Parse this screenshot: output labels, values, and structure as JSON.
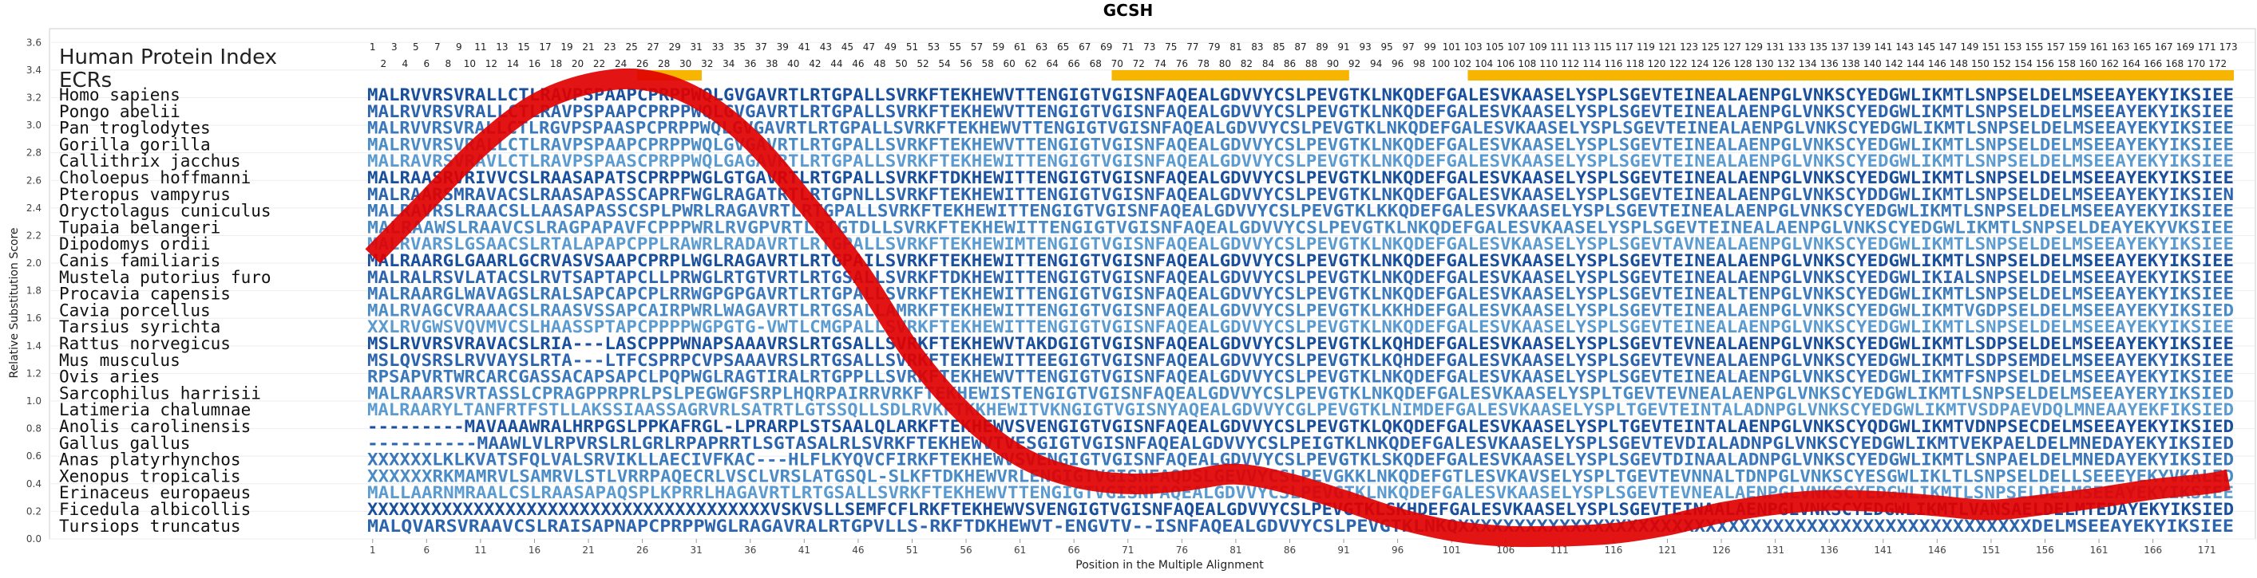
{
  "chart_data": {
    "type": "line",
    "title": "GCSH",
    "xlabel": "Position in the Multiple Alignment",
    "ylabel": "Relative Substitution Score",
    "ylim": [
      0.0,
      3.7
    ],
    "xlim": [
      1,
      173
    ],
    "y_ticks": [
      "0.0",
      "0.2",
      "0.4",
      "0.6",
      "0.8",
      "1.0",
      "1.2",
      "1.4",
      "1.6",
      "1.8",
      "2.0",
      "2.2",
      "2.4",
      "2.6",
      "2.8",
      "3.0",
      "3.2",
      "3.4",
      "3.6"
    ],
    "x_ticks": [
      "1",
      "6",
      "11",
      "16",
      "21",
      "26",
      "31",
      "36",
      "41",
      "46",
      "51",
      "56",
      "61",
      "66",
      "71",
      "76",
      "81",
      "86",
      "91",
      "96",
      "101",
      "106",
      "111",
      "116",
      "121",
      "126",
      "131",
      "136",
      "141",
      "146",
      "151",
      "156",
      "161",
      "166",
      "171"
    ],
    "header_title": "Human Protein Index",
    "ecr_label": "ECRs",
    "ecr_regions": [
      [
        26,
        31
      ],
      [
        70,
        91
      ],
      [
        103,
        173
      ]
    ],
    "ecr_color": "#f7b500",
    "curve_color": "#e00000",
    "series": [
      {
        "x": [
          1,
          6,
          11,
          16,
          21,
          26,
          31,
          36,
          41,
          46,
          51,
          56,
          61,
          66,
          71,
          76,
          81,
          86,
          91,
          96,
          101,
          106,
          111,
          116,
          121,
          126,
          131,
          136,
          141,
          146,
          151,
          156,
          161,
          166,
          171,
          173
        ],
        "y": [
          2.05,
          2.45,
          2.85,
          3.15,
          3.3,
          3.33,
          3.2,
          2.9,
          2.45,
          1.95,
          1.35,
          0.9,
          0.6,
          0.45,
          0.4,
          0.42,
          0.47,
          0.4,
          0.28,
          0.15,
          0.06,
          0.02,
          0.02,
          0.04,
          0.1,
          0.19,
          0.25,
          0.28,
          0.27,
          0.24,
          0.21,
          0.25,
          0.3,
          0.36,
          0.4,
          0.43
        ]
      }
    ],
    "species": [
      "Homo sapiens",
      "Pongo abelii",
      "Pan troglodytes",
      "Gorilla gorilla",
      "Callithrix jacchus",
      "Choloepus hoffmanni",
      "Pteropus vampyrus",
      "Oryctolagus cuniculus",
      "Tupaia belangeri",
      "Dipodomys ordii",
      "Canis familiaris",
      "Mustela putorius furo",
      "Procavia capensis",
      "Cavia porcellus",
      "Tarsius syrichta",
      "Rattus norvegicus",
      "Mus musculus",
      "Ovis aries",
      "Sarcophilus harrisii",
      "Latimeria chalumnae",
      "Anolis carolinensis",
      "Gallus gallus",
      "Anas platyrhynchos",
      "Xenopus tropicalis",
      "Erinaceus europaeus",
      "Ficedula albicollis",
      "Tursiops truncatus"
    ],
    "sequences": [
      "MALRVVRSVRALLCTLRAVPSPAAPCPRPPWQLGVGAVRTLRTGPALLSVRKFTEKHEWVTTENGIGTVGISNFAQEALGDVVYCSLPEVGTKLNKQDEFGALESVKAASELYSPLSGEVTEINEALAENPGLVNKSCYEDGWLIKMTLSNPSELDELMSEEAYEKYIKSIEE",
      "MALRVVRSVRALLCTLRAVPSPAAPCPRPPWQLGVGAVRTLRTGPALLSVRKFTEKHEWVTTENGIGTVGISNFAQEALGDVVYCSLPEVGTKLNKQDEFGALESVKAASELYSPLSGEVTEINEALAENPGLVNKSCYEDGWLIKMTLSNPSELDELMSEEAYEKYIKSIEE",
      "MALRVVRSVRALLCTLRGVPSPAASPCPRPPWQLGVGAVRTLRTGPALLSVRKFTEKHEWVTTENGIGTVGISNFAQEALGDVVYCSLPEVGTKLNKQDEFGALESVKAASELYSPLSGEVTEINEALAENPGLVNKSCYEDGWLIKMTLSNPSELDELMSEEAYEKYIKSIEE",
      "MALRVVRSVRALLCTLRAVPSPAAPCPRPPWQLGVGAVRTLRTGPALLSVRKFTEKHEWVTTENGIGTVGISNFAQEALGDVVYCSLPEVGTKLNKQDEFGALESVKAASELYSPLSGEVTEINEALAENPGLVNKSCYEDGWLIKMTLSNPSELDELMSEEAYEKYIKSIEE",
      "MALRAVRSVRAVLCTLRAVPSPAASCPRPPWQLGAGAVRTLRTGPALLSVRKFTEKHEWITTENGIGTVGISNFAQEALGDVVYCSLPEVGTKLNKQDEFGALESVKAASELYSPLSGEVTEINEALAENPGLVNKSCYEDGWLIKMTLSNPSELDELMSEEAYEKYIKSIEE",
      "MALRAASRVRIVVCSLRAASAPATSCPRPPWGLGTGAVRTLRTGPALLSVRKFTDKHEWITTENGIGTVGISNFAQEALGDVVYCSLPEVGTKLNKQDEFGALESVKAASELYSPLSGEVTEINEALAENPGLVNKSCYEDGWLIKMTLSNPSELDELMSEEAYEKYIKSIEE",
      "MALRAARSMRAVACSLRAASAPASSCAPRFWGLRAGATRTLRTGPNLLSVRKFTEKHEWITTENGIGTVGISNFAQEALGDVVYCSLPEVGTKLNKQDEFGALESVKAASELYSPLSGEVTEINEALAENPGLVNKSCYDDGWLIKMTLSNPSELDELMSEEAYEKYIKSIEN",
      "MALRAVRSLRAACSLLAASAPASSCSPLPWRLRAGAVRTLRTGPALLSVRKFTEKHEWITTENGIGTVGISNFAQEALGDVVYCSLPEVGTKLKKQDEFGALESVKAASELYSPLSGEVTEINEALAENPGLVNKSCYEDGWLIKMTLSNPSELDELMSEEAYEKYIKSIEE",
      "MALRAAWSLRAAVCSLRAGPAPAVFCPPPWRLRVGPVRTLRTGTDLLSVRKFTEKHEWITTENGIGTVGISNFAQEALGDVVYCSLPEVGTKLNKQDEFGALESVKAASELYSPLSGEVTEINEALAENPGLVNKSCYEDGWLIKMTLSNPSELDEAYEKYVKSIEE",
      "MALRVARSLGSAACSLRTALAPAPCPPLRAWRLRADAVRTLRTGPALLSVRKFTEKHEWIMTENGIGTVGISNFAQEALGDVVYCSLPEVGTKLNKQDEFGALESVKAASELYSPLSGEVTAVNEALAENPGLVNKSCYEDGWLIKMTLSNPSELDELMSEEAYEKYIKSIEE",
      "MALRAARGLGAARLGCRVASVSAAPCPRPLWGLRAGAVRTLRTGPAILSVRKFTEKHEWITTENGIGTVGISNFAQEALGDVVYCSLPEVGTKLNKQDEFGALESVKAASELYSPLSGEVTEINEALAENPGLVNKSCYEDGWLIKMTLSNPSELDELMSEEAYEKYIKSIEE",
      "MALRALRSVLATACSLRVTSAPTAPCLLPRWGLRTGTVRTLRTGSALLSVRKFTDKHEWITTENGIGTVGISNFAQEALGDVVYCSLPEVGTKLNKQDEFGALESVKAASELYSPLSGEVTEINEALAENPGLVNKSCYEDGWLIKIALSNPSELDELMSEEAYEKYIKSIEE",
      "MALRAARGLWAVAGSLRALSAPCAPCPLRRWGPGPGAVRTLRTGPALLSVRKFTEKHEWITTENGIGTVGISNFAQEALGDVVYCSLPEVGTKLNKQDEFGALESVKAASELYSPLSGEVTEINEALTENPGLVNKSCYEDGWLIKMTLSNPSELDELMSEEAYEKYIKSIEE",
      "MALRVAGCVRAAACSLRAASVSSAPCAIRPWRLWAGAVRTLRTGSALLAMRKFTEKHEWITTENGIGTVGISNFAQEALGDVVYCSLPEVGTKLKKHDEFGALESVKAASELYSPLSGEVTEINEALAENPGLVNKSCYEDGWLIKMTVGDPSELDELMSEEAYEKYIKSIED",
      "XXLRVGWSVQVMVCSLHAASSPTAPCPPPPWGPGTG-VWTLCMGPALLSVRKFTEKHEWITTENGIGTVGISNFAQEALGDVVYCSLPEVGTKLNKQDEFGALESVKAASELYSPLSGEVTEINEALAENPGLVNKSCYEDGWLIKMTLSNPSELDELMSEEAYEKYIKSIEE",
      "MSLRVVRSVRAVACSLRIA---LASCPPPWNAPSAAAVRSLRTGSALLSVRKFTEKHEWVTAKDGIGTVGISNFAQEALGDVVYCSLPEVGTKLKQHDEFGALESVKAASELYSPLSGEVTEVNEALAENPGLVNKSCYEDGWLIKMTLSDPSELDELMSEEAYEKYIKSIEE",
      "MSLQVSRSLRVVAYSLRTA---LTFCSPRPCVPSAAAVRSLRTGSALLSVRKFTEKHEWITTEEGIGTVGISNFAQEALGDVVYCSLPEVGTKLKQHDEFGALESVKAASELYSPLSGEVTEVNEALAENPGLVNKSCYEDGWLIKMTLSDPSEMDELMSEEAYEKYIKSIEE",
      "RPSAPVRTWRCARCGASSACAPSAPCLPQPWGLRAGTIRALRTGPPLLSVRKFTEKHEWVTTENGIGTVGISNFAQEALGDVVYCSLPEVGTKLNKQDEFGALESVKAASELYSPLSGEVTEINEALAENPGLVNKSCYEDGWLIKMTFSNPSELDELMSEEAYEKYIKSIEE",
      "MALRAARSVRTASSLCPRAGPPRPRLPSLPEGWGFSRPLHQRPAIRRVRKFTEKHEWISTENGIGTVGISNFAQEALGDVVYCSLPEVGTKLNKQDEFGALESVKAASELYSPLTGEVTEVNEALAENPGLVNKSCYEDGWLIKMTLSNPSELDELMSEEAYERYIKSIED",
      "MALRAARYLTANFRTFSTLLAKSSIAASSAGRVRLSATRTLGTSSQLLSDLRVKFTKKHEWITVKNGIGTVGISNYAQEALGDVVYCGLPEVGTKLNIMDEFGALESVKAASELYSPLTGEVTEINTALADNPGLVNKSCYEDGWLIKMTVSDPAEVDQLMNEAAYEKFIKSIED",
      "---------MAVAAAWRALHRPGSLPPKAFRGL-LPRARPLSTSAALQLARKFTEKHEWVSVENGIGTVGISNFAQEALGDVVYCSLPEVGTKLQKQDEFGALESVKAASELYSPLTGEVTEINTALAENPGLVNKSCYQDGWLIKMTVDNPSECDELMSEEAYEKYIKSIED",
      "----------MAAWLVLRPVRSLRLGRLRPAPRRTLSGTASALRLSVRKFTEKHEWVTVESGIGTVGISNFAQEALGDVVYCSLPEIGTKLNKQDEFGALESVKAASELYSPLSGEVTEVDIALADNPGLVNKSCYEDGWLIKMTVEKPAELDELMNEDAYEKYIKSIED",
      "XXXXXXLKLKVATSFQLVALSRVIKLLAECIVFKAC---HLFLKYQVCFIRKFTEKHEWVSVENGIGTVGISNFAQEALGDVVYCSLPEVGTKLSKQDEFGALESVKAASELYSPLSGEVTDINAALADNPGLVNKSCYEDGWLIKMTLSNPAELDELMNEDAYEKYIKSIED",
      "XXXXXXRKMAMRVLSAMRVLSTLVRRPAQECRLVSCLVRSLATGSQL-SLKFTDKHEWVRLENGIGTVGISNFAQDSLGEVVYCSLPEVGKKLNKQDEFGTLESVKAVSELYSPLTGEVTEVNNALTDNPGLVNKSCYESGWLIKLTLSNPSELDELLSEEEYEKYVKALED",
      "MALLAARNMRAALCSLRAASAPAQSPLKPRRLHAGAVRTLRTGSALLSVRKFTEKHEWVTTENGIGTVGISNFAQEALGDVVYCSLPEVGTKLNKQDEFGALESVKAASELYSPLSGEVTEVNEALAENPGLVNKSCYEDGWLIKMTLSNPSELDELMSEEAYEKYIKSIEE",
      "XXXXXXXXXXXXXXXXXXXXXXXXXXXXXXXXXXXXXXVSKVSLLSEMFCFLRKFTEKHEWVSVENGIGTVGISNFAQEALGDVVYCSLPEVGTKLSKHDEFGALESVKAASELYSPLSGEVTEINAALAENPGLVNKSCYEDGWLIKMTLVANSAELDELMTEDAYEKYIKSIED",
      "MALQVARSVRAAVCSLRAISAPNAPCPRPPWGLRAGAVRALRTGPVLLS-RKFTDKHEWVT-ENGVTV--ISNFAQEALGDVVYCSLPEVGTKLNKQXXXXXXXXXXXXXXXXXXXXXXXXXXXXXXXXXXXXXXXXXXXXXXXXXXXDELMSEEAYEKYIKSIEE"
    ]
  }
}
